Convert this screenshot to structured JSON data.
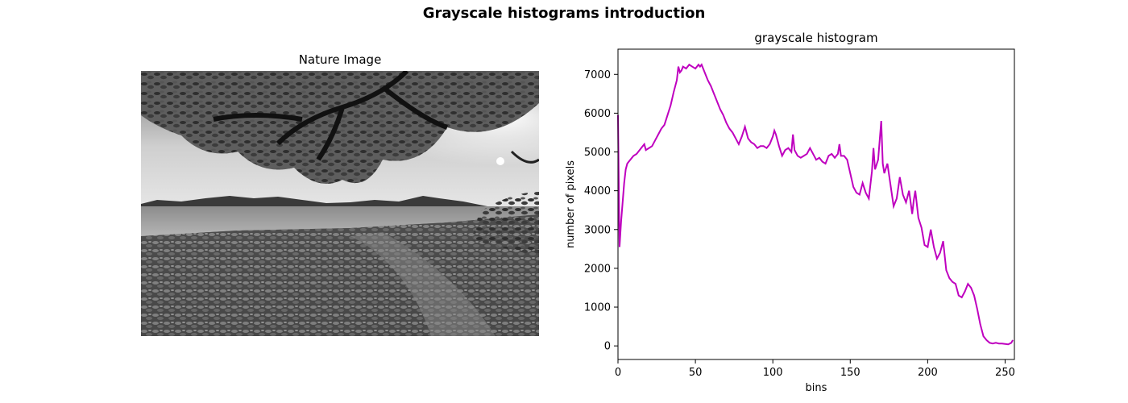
{
  "figure": {
    "suptitle": "Grayscale histograms introduction"
  },
  "image_panel": {
    "title": "Nature Image"
  },
  "colors": {
    "line": "#bf00bf",
    "axes": "#000000",
    "background": "#ffffff"
  },
  "chart_data": {
    "type": "line",
    "title": "grayscale histogram",
    "xlabel": "bins",
    "ylabel": "number of pixels",
    "xlim": [
      0,
      256
    ],
    "ylim": [
      -350,
      7650
    ],
    "xticks": [
      0,
      50,
      100,
      150,
      200,
      250
    ],
    "yticks": [
      0,
      1000,
      2000,
      3000,
      4000,
      5000,
      6000,
      7000
    ],
    "grid": false,
    "series": [
      {
        "x": [
          0,
          1,
          2,
          3,
          4,
          5,
          6,
          7,
          8,
          9,
          10,
          12,
          14,
          16,
          17,
          18,
          20,
          22,
          24,
          26,
          28,
          30,
          32,
          34,
          36,
          38,
          39,
          40,
          41,
          42,
          44,
          46,
          48,
          50,
          52,
          53,
          54,
          56,
          58,
          60,
          62,
          64,
          66,
          68,
          70,
          72,
          74,
          76,
          78,
          80,
          82,
          84,
          86,
          88,
          90,
          92,
          94,
          96,
          98,
          100,
          101,
          102,
          104,
          106,
          108,
          110,
          112,
          113,
          114,
          116,
          118,
          120,
          122,
          124,
          126,
          128,
          130,
          132,
          134,
          136,
          138,
          140,
          142,
          143,
          144,
          146,
          148,
          150,
          152,
          154,
          156,
          158,
          160,
          162,
          164,
          165,
          166,
          168,
          170,
          171,
          172,
          174,
          176,
          178,
          180,
          182,
          184,
          186,
          188,
          190,
          191,
          192,
          194,
          196,
          198,
          200,
          202,
          204,
          206,
          208,
          210,
          212,
          214,
          216,
          218,
          220,
          222,
          224,
          226,
          228,
          230,
          232,
          234,
          236,
          238,
          240,
          242,
          244,
          246,
          248,
          250,
          252,
          254,
          255
        ],
        "y": [
          5950,
          2550,
          3200,
          3700,
          4200,
          4550,
          4700,
          4750,
          4800,
          4850,
          4900,
          4950,
          5050,
          5150,
          5200,
          5050,
          5100,
          5150,
          5300,
          5450,
          5600,
          5700,
          5950,
          6200,
          6550,
          6850,
          7200,
          7050,
          7100,
          7200,
          7150,
          7250,
          7200,
          7150,
          7250,
          7200,
          7250,
          7050,
          6850,
          6700,
          6500,
          6300,
          6100,
          5950,
          5750,
          5600,
          5500,
          5350,
          5200,
          5400,
          5650,
          5350,
          5250,
          5200,
          5100,
          5150,
          5150,
          5100,
          5200,
          5400,
          5550,
          5450,
          5150,
          4900,
          5050,
          5100,
          5000,
          5450,
          5050,
          4900,
          4850,
          4900,
          4950,
          5100,
          4950,
          4800,
          4850,
          4750,
          4700,
          4900,
          4950,
          4850,
          4950,
          5200,
          4900,
          4900,
          4800,
          4450,
          4100,
          3950,
          3900,
          4200,
          3950,
          3800,
          4500,
          5100,
          4550,
          4800,
          5800,
          4700,
          4450,
          4700,
          4150,
          3600,
          3800,
          4350,
          3900,
          3700,
          4000,
          3400,
          3750,
          4000,
          3300,
          3050,
          2600,
          2550,
          3000,
          2550,
          2250,
          2400,
          2700,
          1950,
          1750,
          1650,
          1600,
          1300,
          1250,
          1400,
          1600,
          1500,
          1300,
          950,
          550,
          250,
          150,
          80,
          60,
          80,
          60,
          60,
          50,
          40,
          80,
          150
        ],
        "color": "#bf00bf"
      }
    ]
  }
}
